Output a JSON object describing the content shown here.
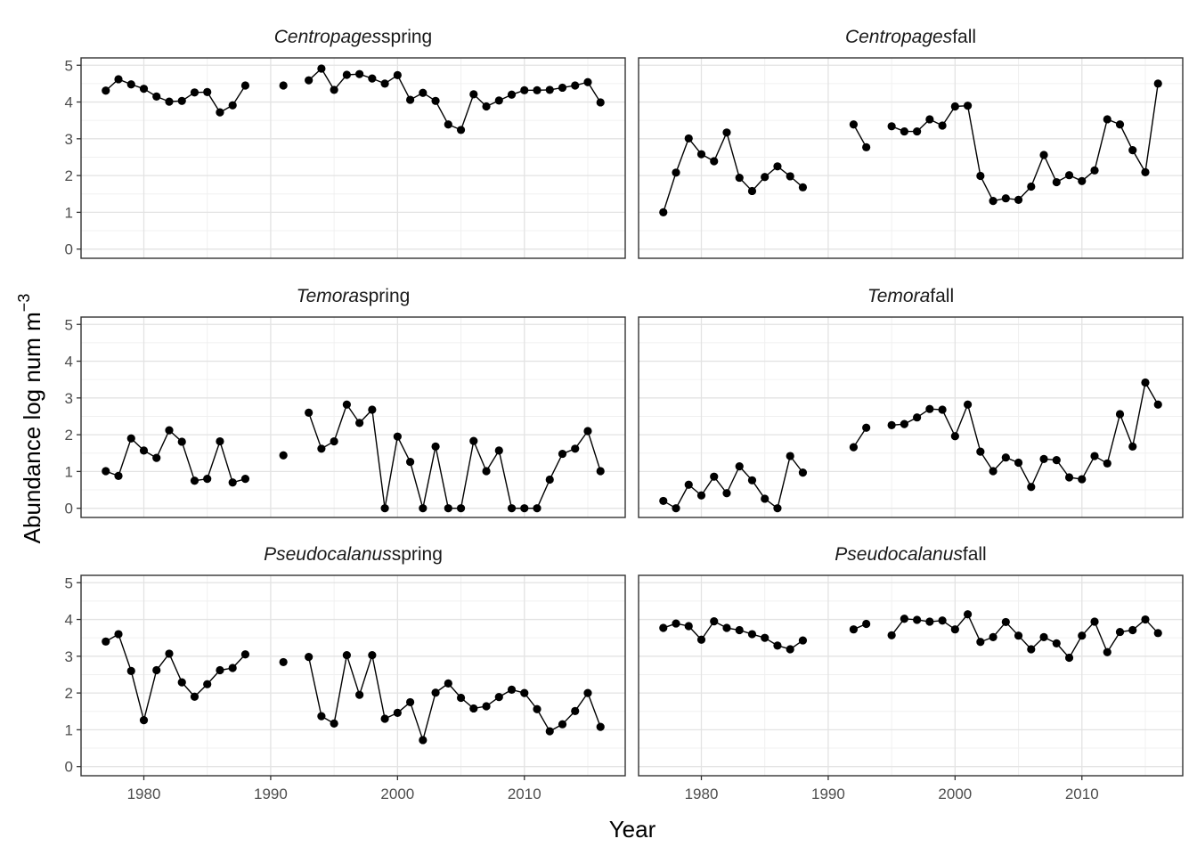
{
  "figure": {
    "xlabel": "Year",
    "ylabel": "Abundance log num m",
    "ylabel_sup": "−3"
  },
  "chart_data": {
    "type": "line",
    "x_ticks": [
      1980,
      1990,
      2000,
      2010
    ],
    "y_ticks": [
      0,
      1,
      2,
      3,
      4,
      5
    ],
    "xlim": [
      1975.05,
      2017.95
    ],
    "ylim": [
      -0.25,
      5.2
    ],
    "grid": true,
    "panels": [
      {
        "taxon": "Centropages",
        "season": "spring",
        "x": [
          1977,
          1978,
          1979,
          1980,
          1981,
          1982,
          1983,
          1984,
          1985,
          1986,
          1987,
          1988,
          1991,
          1993,
          1994,
          1995,
          1996,
          1997,
          1998,
          1999,
          2000,
          2001,
          2002,
          2003,
          2004,
          2005,
          2006,
          2007,
          2008,
          2009,
          2010,
          2011,
          2012,
          2013,
          2014,
          2015,
          2016
        ],
        "y": [
          4.31,
          4.62,
          4.48,
          4.36,
          4.15,
          4.01,
          4.03,
          4.26,
          4.27,
          3.72,
          3.91,
          4.45,
          4.45,
          4.59,
          4.91,
          4.33,
          4.74,
          4.76,
          4.64,
          4.5,
          4.73,
          4.06,
          4.25,
          4.03,
          3.39,
          3.24,
          4.21,
          3.88,
          4.04,
          4.2,
          4.32,
          4.32,
          4.33,
          4.39,
          4.45,
          4.54,
          3.99
        ]
      },
      {
        "taxon": "Centropages",
        "season": "fall",
        "x": [
          1977,
          1978,
          1979,
          1980,
          1981,
          1982,
          1983,
          1984,
          1985,
          1986,
          1987,
          1988,
          1992,
          1993,
          1995,
          1996,
          1997,
          1998,
          1999,
          2000,
          2001,
          2002,
          2003,
          2004,
          2005,
          2006,
          2007,
          2008,
          2009,
          2010,
          2011,
          2012,
          2013,
          2014,
          2015,
          2016
        ],
        "y": [
          1.0,
          2.08,
          3.01,
          2.58,
          2.39,
          3.17,
          1.94,
          1.58,
          1.96,
          2.25,
          1.98,
          1.68,
          3.39,
          2.77,
          3.34,
          3.2,
          3.2,
          3.53,
          3.36,
          3.88,
          3.9,
          1.99,
          1.31,
          1.38,
          1.34,
          1.7,
          2.56,
          1.82,
          2.01,
          1.85,
          2.14,
          3.53,
          3.39,
          2.69,
          2.09,
          4.5
        ]
      },
      {
        "taxon": "Temora",
        "season": "spring",
        "x": [
          1977,
          1978,
          1979,
          1980,
          1981,
          1982,
          1983,
          1984,
          1985,
          1986,
          1987,
          1988,
          1991,
          1993,
          1994,
          1995,
          1996,
          1997,
          1998,
          1999,
          2000,
          2001,
          2002,
          2003,
          2004,
          2005,
          2006,
          2007,
          2008,
          2009,
          2010,
          2011,
          2012,
          2013,
          2014,
          2015,
          2016
        ],
        "y": [
          1.01,
          0.88,
          1.9,
          1.57,
          1.37,
          2.12,
          1.81,
          0.75,
          0.8,
          1.82,
          0.7,
          0.8,
          1.44,
          2.6,
          1.62,
          1.82,
          2.82,
          2.32,
          2.68,
          0.0,
          1.95,
          1.26,
          0.0,
          1.68,
          0.0,
          0.0,
          1.83,
          1.01,
          1.57,
          0.0,
          0.0,
          0.0,
          0.78,
          1.48,
          1.62,
          2.1,
          1.01
        ]
      },
      {
        "taxon": "Temora",
        "season": "fall",
        "x": [
          1977,
          1978,
          1979,
          1980,
          1981,
          1982,
          1983,
          1984,
          1985,
          1986,
          1987,
          1988,
          1992,
          1993,
          1995,
          1996,
          1997,
          1998,
          1999,
          2000,
          2001,
          2002,
          2003,
          2004,
          2005,
          2006,
          2007,
          2008,
          2009,
          2010,
          2011,
          2012,
          2013,
          2014,
          2015,
          2016
        ],
        "y": [
          0.2,
          0.0,
          0.64,
          0.35,
          0.86,
          0.41,
          1.14,
          0.76,
          0.26,
          0.0,
          1.42,
          0.97,
          1.66,
          2.19,
          2.26,
          2.29,
          2.47,
          2.7,
          2.68,
          1.96,
          2.82,
          1.54,
          1.01,
          1.38,
          1.24,
          0.58,
          1.34,
          1.31,
          0.84,
          0.79,
          1.42,
          1.22,
          2.56,
          1.68,
          3.42,
          2.82
        ]
      },
      {
        "taxon": "Pseudocalanus",
        "season": "spring",
        "x": [
          1977,
          1978,
          1979,
          1980,
          1981,
          1982,
          1983,
          1984,
          1985,
          1986,
          1987,
          1988,
          1991,
          1993,
          1994,
          1995,
          1996,
          1997,
          1998,
          1999,
          2000,
          2001,
          2002,
          2003,
          2004,
          2005,
          2006,
          2007,
          2008,
          2009,
          2010,
          2011,
          2012,
          2013,
          2014,
          2015,
          2016
        ],
        "y": [
          3.4,
          3.6,
          2.6,
          1.26,
          2.62,
          3.07,
          2.29,
          1.9,
          2.24,
          2.62,
          2.68,
          3.05,
          2.84,
          2.98,
          1.37,
          1.17,
          3.03,
          1.95,
          3.03,
          1.3,
          1.46,
          1.75,
          0.72,
          2.01,
          2.26,
          1.87,
          1.58,
          1.64,
          1.89,
          2.09,
          2.0,
          1.56,
          0.96,
          1.15,
          1.51,
          2.0,
          1.08
        ]
      },
      {
        "taxon": "Pseudocalanus",
        "season": "fall",
        "x": [
          1977,
          1978,
          1979,
          1980,
          1981,
          1982,
          1983,
          1984,
          1985,
          1986,
          1987,
          1988,
          1992,
          1993,
          1995,
          1996,
          1997,
          1998,
          1999,
          2000,
          2001,
          2002,
          2003,
          2004,
          2005,
          2006,
          2007,
          2008,
          2009,
          2010,
          2011,
          2012,
          2013,
          2014,
          2015,
          2016
        ],
        "y": [
          3.77,
          3.89,
          3.82,
          3.45,
          3.95,
          3.77,
          3.71,
          3.6,
          3.5,
          3.29,
          3.19,
          3.43,
          3.73,
          3.88,
          3.57,
          4.02,
          3.99,
          3.94,
          3.97,
          3.73,
          4.14,
          3.39,
          3.52,
          3.93,
          3.56,
          3.19,
          3.52,
          3.35,
          2.96,
          3.56,
          3.94,
          3.11,
          3.66,
          3.71,
          4.0,
          3.63
        ]
      }
    ]
  }
}
